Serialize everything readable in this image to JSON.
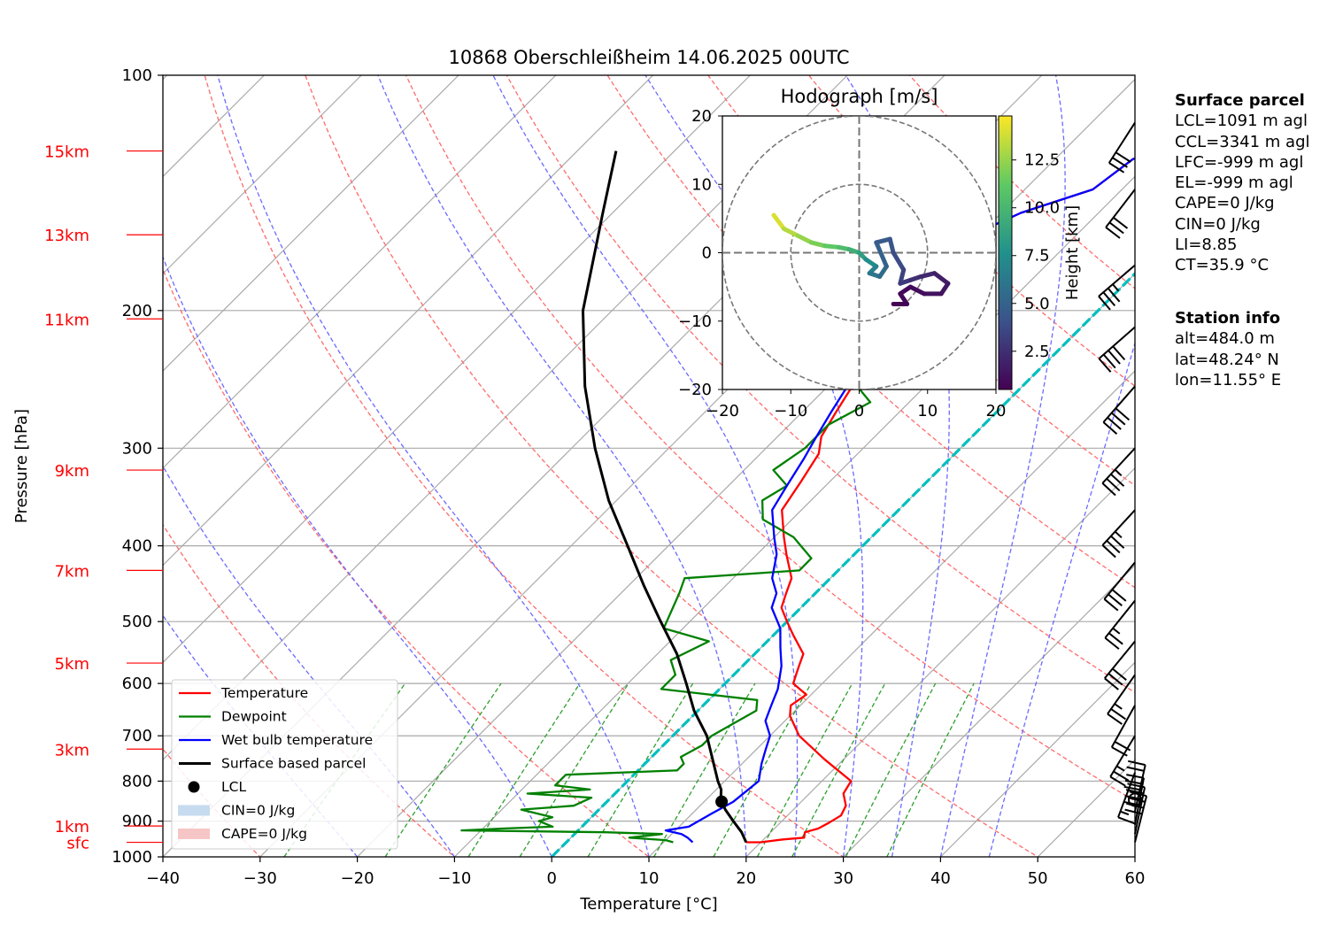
{
  "chart_data": {
    "type": "skew-t log-p",
    "title": "10868 Oberschleißheim 14.06.2025 00UTC",
    "xlabel": "Temperature [°C]",
    "ylabel": "Pressure [hPa]",
    "xlim": [
      -40,
      60
    ],
    "ylim": [
      1000,
      100
    ],
    "x_ticks": [
      "−40",
      "−30",
      "−20",
      "−10",
      "0",
      "10",
      "20",
      "30",
      "40",
      "50",
      "60"
    ],
    "p_ticks": [
      "100",
      "200",
      "300",
      "400",
      "500",
      "600",
      "700",
      "800",
      "900",
      "1000"
    ],
    "height_labels": [
      {
        "label": "15km",
        "p": 125
      },
      {
        "label": "13km",
        "p": 160
      },
      {
        "label": "11km",
        "p": 205
      },
      {
        "label": "9km",
        "p": 320
      },
      {
        "label": "7km",
        "p": 430
      },
      {
        "label": "5km",
        "p": 565
      },
      {
        "label": "3km",
        "p": 728
      },
      {
        "label": "1km",
        "p": 913
      },
      {
        "label": "sfc",
        "p": 958
      }
    ],
    "series": [
      {
        "name": "Temperature",
        "color": "#ff0000",
        "points": [
          [
            18.5,
            958
          ],
          [
            20,
            958
          ],
          [
            22,
            950
          ],
          [
            24,
            945
          ],
          [
            23.5,
            930
          ],
          [
            24.5,
            920
          ],
          [
            25,
            905
          ],
          [
            25.5,
            885
          ],
          [
            25,
            860
          ],
          [
            23.5,
            830
          ],
          [
            23,
            800
          ],
          [
            18,
            750
          ],
          [
            13,
            700
          ],
          [
            10,
            660
          ],
          [
            9,
            640
          ],
          [
            9.5,
            620
          ],
          [
            7,
            600
          ],
          [
            6,
            575
          ],
          [
            5,
            550
          ],
          [
            2,
            520
          ],
          [
            0,
            500
          ],
          [
            -2,
            480
          ],
          [
            -3,
            460
          ],
          [
            -4,
            440
          ],
          [
            -7,
            410
          ],
          [
            -9,
            390
          ],
          [
            -12,
            360
          ],
          [
            -13,
            330
          ],
          [
            -14,
            305
          ],
          [
            -15.5,
            290
          ],
          [
            -16.5,
            270
          ],
          [
            -17.5,
            250
          ],
          [
            -18.5,
            230
          ],
          [
            -20,
            210
          ],
          [
            -23,
            195
          ],
          [
            -26,
            175
          ],
          [
            -22,
            165
          ],
          [
            -18,
            150
          ],
          [
            -13,
            140
          ],
          [
            -12,
            128
          ],
          [
            -8,
            122
          ],
          [
            -8,
            119
          ]
        ]
      },
      {
        "name": "Dewpoint",
        "color": "#008000",
        "points": [
          [
            11,
            958
          ],
          [
            10,
            952
          ],
          [
            6,
            945
          ],
          [
            9,
            935
          ],
          [
            3,
            930
          ],
          [
            -12,
            925
          ],
          [
            -8,
            920
          ],
          [
            -3,
            915
          ],
          [
            -5,
            900
          ],
          [
            -4,
            890
          ],
          [
            -8,
            870
          ],
          [
            -3,
            860
          ],
          [
            -2,
            840
          ],
          [
            -9,
            830
          ],
          [
            -3,
            820
          ],
          [
            -7,
            810
          ],
          [
            -7,
            785
          ],
          [
            4,
            775
          ],
          [
            4,
            760
          ],
          [
            3,
            745
          ],
          [
            4,
            720
          ],
          [
            4,
            700
          ],
          [
            6,
            650
          ],
          [
            5,
            630
          ],
          [
            -6,
            610
          ],
          [
            -6,
            585
          ],
          [
            -8,
            560
          ],
          [
            -6,
            530
          ],
          [
            -12,
            510
          ],
          [
            -14,
            460
          ],
          [
            -15,
            440
          ],
          [
            -4,
            430
          ],
          [
            -4,
            415
          ],
          [
            -8,
            390
          ],
          [
            -13,
            370
          ],
          [
            -15,
            350
          ],
          [
            -14,
            335
          ],
          [
            -17,
            320
          ],
          [
            -16,
            300
          ],
          [
            -16,
            280
          ],
          [
            -14,
            262
          ],
          [
            -17,
            250
          ],
          [
            -18,
            230
          ],
          [
            -20,
            215
          ],
          [
            -21,
            195
          ],
          [
            -22,
            180
          ],
          [
            -24,
            170
          ],
          [
            -27,
            160
          ],
          [
            -28,
            150
          ],
          [
            -28,
            140
          ],
          [
            -29,
            130
          ],
          [
            -29,
            125
          ],
          [
            -29,
            119
          ]
        ]
      },
      {
        "name": "Wet bulb temperature",
        "color": "#0000ff",
        "points": [
          [
            13,
            958
          ],
          [
            12,
            945
          ],
          [
            11,
            935
          ],
          [
            9,
            925
          ],
          [
            11,
            915
          ],
          [
            12,
            880
          ],
          [
            13,
            850
          ],
          [
            13.5,
            800
          ],
          [
            12,
            760
          ],
          [
            11,
            730
          ],
          [
            10,
            700
          ],
          [
            8,
            670
          ],
          [
            7,
            640
          ],
          [
            6,
            610
          ],
          [
            4,
            570
          ],
          [
            2,
            540
          ],
          [
            0,
            510
          ],
          [
            -3,
            480
          ],
          [
            -4,
            460
          ],
          [
            -6,
            440
          ],
          [
            -8,
            410
          ],
          [
            -10,
            390
          ],
          [
            -13,
            360
          ],
          [
            -14,
            335
          ],
          [
            -15,
            310
          ],
          [
            -16,
            290
          ],
          [
            -17,
            270
          ],
          [
            -18,
            250
          ],
          [
            -19.5,
            230
          ],
          [
            -21,
            210
          ],
          [
            -24,
            195
          ],
          [
            -27,
            180
          ],
          [
            -28,
            170
          ],
          [
            -22,
            165
          ],
          [
            -18,
            150
          ],
          [
            -13,
            140
          ],
          [
            -12,
            128
          ],
          [
            -8,
            122
          ],
          [
            -8,
            119
          ]
        ]
      },
      {
        "name": "Surface based parcel",
        "color": "#000000",
        "points": [
          [
            18.5,
            958
          ],
          [
            17,
            930
          ],
          [
            15,
            900
          ],
          [
            13,
            870
          ],
          [
            11.5,
            845
          ],
          [
            10.5,
            820
          ],
          [
            9.3,
            800
          ],
          [
            6.5,
            750
          ],
          [
            3.5,
            700
          ],
          [
            -0.4,
            650
          ],
          [
            -4,
            600
          ],
          [
            -8,
            550
          ],
          [
            -13,
            500
          ],
          [
            -18.4,
            450
          ],
          [
            -24.2,
            400
          ],
          [
            -30.8,
            350
          ],
          [
            -37.6,
            300
          ],
          [
            -45,
            250
          ],
          [
            -53,
            200
          ],
          [
            -61,
            150
          ],
          [
            -66,
            125
          ]
        ]
      }
    ],
    "lcl": {
      "name": "LCL",
      "t": 11.8,
      "p": 850
    },
    "cin_legend": "CIN=0 J/kg",
    "cape_legend": "CAPE=0 J/kg",
    "freezing_line": {
      "color": "#00bfbf",
      "t": 0
    },
    "winds": [
      {
        "p": 958,
        "u": -5,
        "v": -20
      },
      {
        "p": 935,
        "u": -4,
        "v": -19
      },
      {
        "p": 910,
        "u": -3,
        "v": -16
      },
      {
        "p": 875,
        "u": -2,
        "v": -9
      },
      {
        "p": 845,
        "u": 0,
        "v": 0
      },
      {
        "p": 780,
        "u": 3,
        "v": 8
      },
      {
        "p": 700,
        "u": 6,
        "v": 10
      },
      {
        "p": 640,
        "u": 5,
        "v": 9
      },
      {
        "p": 585,
        "u": 7,
        "v": 10
      },
      {
        "p": 530,
        "u": 9,
        "v": 11
      },
      {
        "p": 470,
        "u": 8,
        "v": 10
      },
      {
        "p": 420,
        "u": 10,
        "v": 12
      },
      {
        "p": 360,
        "u": 12,
        "v": 13
      },
      {
        "p": 300,
        "u": 13,
        "v": 14
      },
      {
        "p": 250,
        "u": 14,
        "v": 16
      },
      {
        "p": 210,
        "u": 16,
        "v": 14
      },
      {
        "p": 175,
        "u": 14,
        "v": 12
      },
      {
        "p": 140,
        "u": 10,
        "v": 13
      },
      {
        "p": 115,
        "u": 9,
        "v": 14
      }
    ],
    "hodograph": {
      "title": "Hodograph [m/s]",
      "xlim": [
        -20,
        20
      ],
      "ylim": [
        -20,
        20
      ],
      "ticks": [
        "−20",
        "−10",
        "0",
        "10",
        "20"
      ],
      "colorbar_label": "Height [km]",
      "colorbar_ticks": [
        "2.5",
        "5.0",
        "7.5",
        "10.0",
        "12.5"
      ],
      "colorbar_range": [
        0.5,
        14.8
      ],
      "points": [
        [
          -12.5,
          5.5,
          14.5
        ],
        [
          -11,
          3.5,
          13.5
        ],
        [
          -9,
          2.5,
          12.8
        ],
        [
          -7,
          1.5,
          12.2
        ],
        [
          -5,
          1,
          11.5
        ],
        [
          -3,
          0.8,
          10.8
        ],
        [
          -1.5,
          0.5,
          10
        ],
        [
          0,
          0,
          9
        ],
        [
          1,
          -1,
          8
        ],
        [
          2.5,
          -2,
          7
        ],
        [
          1.5,
          -3,
          6.5
        ],
        [
          3,
          -3.5,
          5.8
        ],
        [
          4,
          -2,
          5.2
        ],
        [
          2.5,
          1.5,
          4.8
        ],
        [
          4.5,
          2,
          4.5
        ],
        [
          5,
          0,
          4
        ],
        [
          6.5,
          -2.5,
          3.6
        ],
        [
          6,
          -4.5,
          3.2
        ],
        [
          7.5,
          -4,
          2.8
        ],
        [
          9,
          -3.5,
          2.4
        ],
        [
          11,
          -3,
          2
        ],
        [
          13,
          -4.5,
          1.6
        ],
        [
          12,
          -6,
          1.3
        ],
        [
          9.5,
          -6,
          1.1
        ],
        [
          7.5,
          -5,
          0.9
        ],
        [
          6,
          -6,
          0.8
        ],
        [
          7,
          -7.5,
          0.7
        ],
        [
          5,
          -7.5,
          0.6
        ]
      ]
    },
    "legend": [
      "Temperature",
      "Dewpoint",
      "Wet bulb temperature",
      "Surface based parcel",
      "LCL",
      "CIN=0 J/kg",
      "CAPE=0 J/kg"
    ]
  },
  "surface_parcel": {
    "title": "Surface parcel",
    "lines": [
      "LCL=1091 m agl",
      "CCL=3341 m agl",
      "LFC=-999 m agl",
      "EL=-999 m agl",
      "CAPE=0 J/kg",
      "CIN=0 J/kg",
      "LI=8.85",
      "CT=35.9 °C"
    ]
  },
  "station_info": {
    "title": "Station info",
    "lines": [
      "alt=484.0 m",
      "lat=48.24° N",
      "lon=11.55° E"
    ]
  }
}
